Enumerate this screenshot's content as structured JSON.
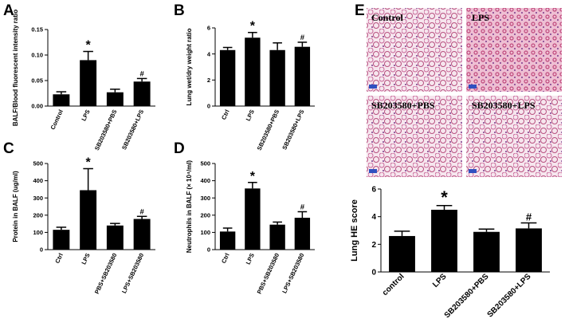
{
  "chart_data": [
    {
      "type": "bar",
      "panel": "A",
      "ylabel": "BALF/Blood fluorescent intensity ratio",
      "categories": [
        "Control",
        "LPS",
        "SB203580+PBS",
        "SB203580+LPS"
      ],
      "values": [
        0.023,
        0.09,
        0.027,
        0.048
      ],
      "errors": [
        0.005,
        0.017,
        0.006,
        0.006
      ],
      "annotations": [
        null,
        "*",
        null,
        "#"
      ],
      "color": "#000000",
      "ylim": [
        0,
        0.15
      ],
      "yticks": [
        {
          "value": 0,
          "label": "0.00"
        },
        {
          "value": 0.05,
          "label": "0.05"
        },
        {
          "value": 0.1,
          "label": "0.10"
        },
        {
          "value": 0.15,
          "label": "0.15"
        }
      ]
    },
    {
      "type": "bar",
      "panel": "B",
      "ylabel": "Lung wet/dry weight ratio",
      "categories": [
        "Ctrl",
        "LPS",
        "SB203580+PBS",
        "SB203580+LPS"
      ],
      "values": [
        4.3,
        5.25,
        4.3,
        4.55
      ],
      "errors": [
        0.2,
        0.4,
        0.55,
        0.35
      ],
      "annotations": [
        null,
        "*",
        null,
        "#"
      ],
      "color": "#000000",
      "ylim": [
        0,
        6
      ],
      "yticks": [
        0,
        2,
        4,
        6
      ]
    },
    {
      "type": "bar",
      "panel": "C",
      "ylabel": "Protein in BALF (ug/ml)",
      "categories": [
        "Ctrl",
        "LPS",
        "PBS+SB203580",
        "LPS+SB203580"
      ],
      "values": [
        115,
        345,
        140,
        178
      ],
      "errors": [
        15,
        125,
        12,
        15
      ],
      "annotations": [
        null,
        "*",
        null,
        "#"
      ],
      "color": "#000000",
      "ylim": [
        0,
        500
      ],
      "yticks": [
        0,
        100,
        200,
        300,
        400,
        500
      ]
    },
    {
      "type": "bar",
      "panel": "D",
      "ylabel": "Neutrophils in BALF (× 10⁴/ml)",
      "categories": [
        "Ctrl",
        "LPS",
        "PBS+SB203580",
        "LPS+SB203580"
      ],
      "values": [
        105,
        355,
        145,
        185
      ],
      "errors": [
        20,
        35,
        15,
        35
      ],
      "annotations": [
        null,
        "*",
        null,
        "#"
      ],
      "color": "#000000",
      "ylim": [
        0,
        500
      ],
      "yticks": [
        0,
        100,
        200,
        300,
        400,
        500
      ]
    },
    {
      "type": "bar",
      "panel": "E",
      "ylabel": "Lung HE score",
      "image_labels": [
        "Control",
        "LPS",
        "SB203580+PBS",
        "SB203580+LPS"
      ],
      "categories": [
        "control",
        "LPS",
        "SB203580+PBS",
        "SB203580+LPS"
      ],
      "values": [
        2.6,
        4.5,
        2.9,
        3.15
      ],
      "errors": [
        0.35,
        0.3,
        0.2,
        0.4
      ],
      "annotations": [
        null,
        "*",
        null,
        "#"
      ],
      "color": "#000000",
      "ylim": [
        0,
        6
      ],
      "yticks": [
        0,
        2,
        4,
        6
      ]
    }
  ]
}
